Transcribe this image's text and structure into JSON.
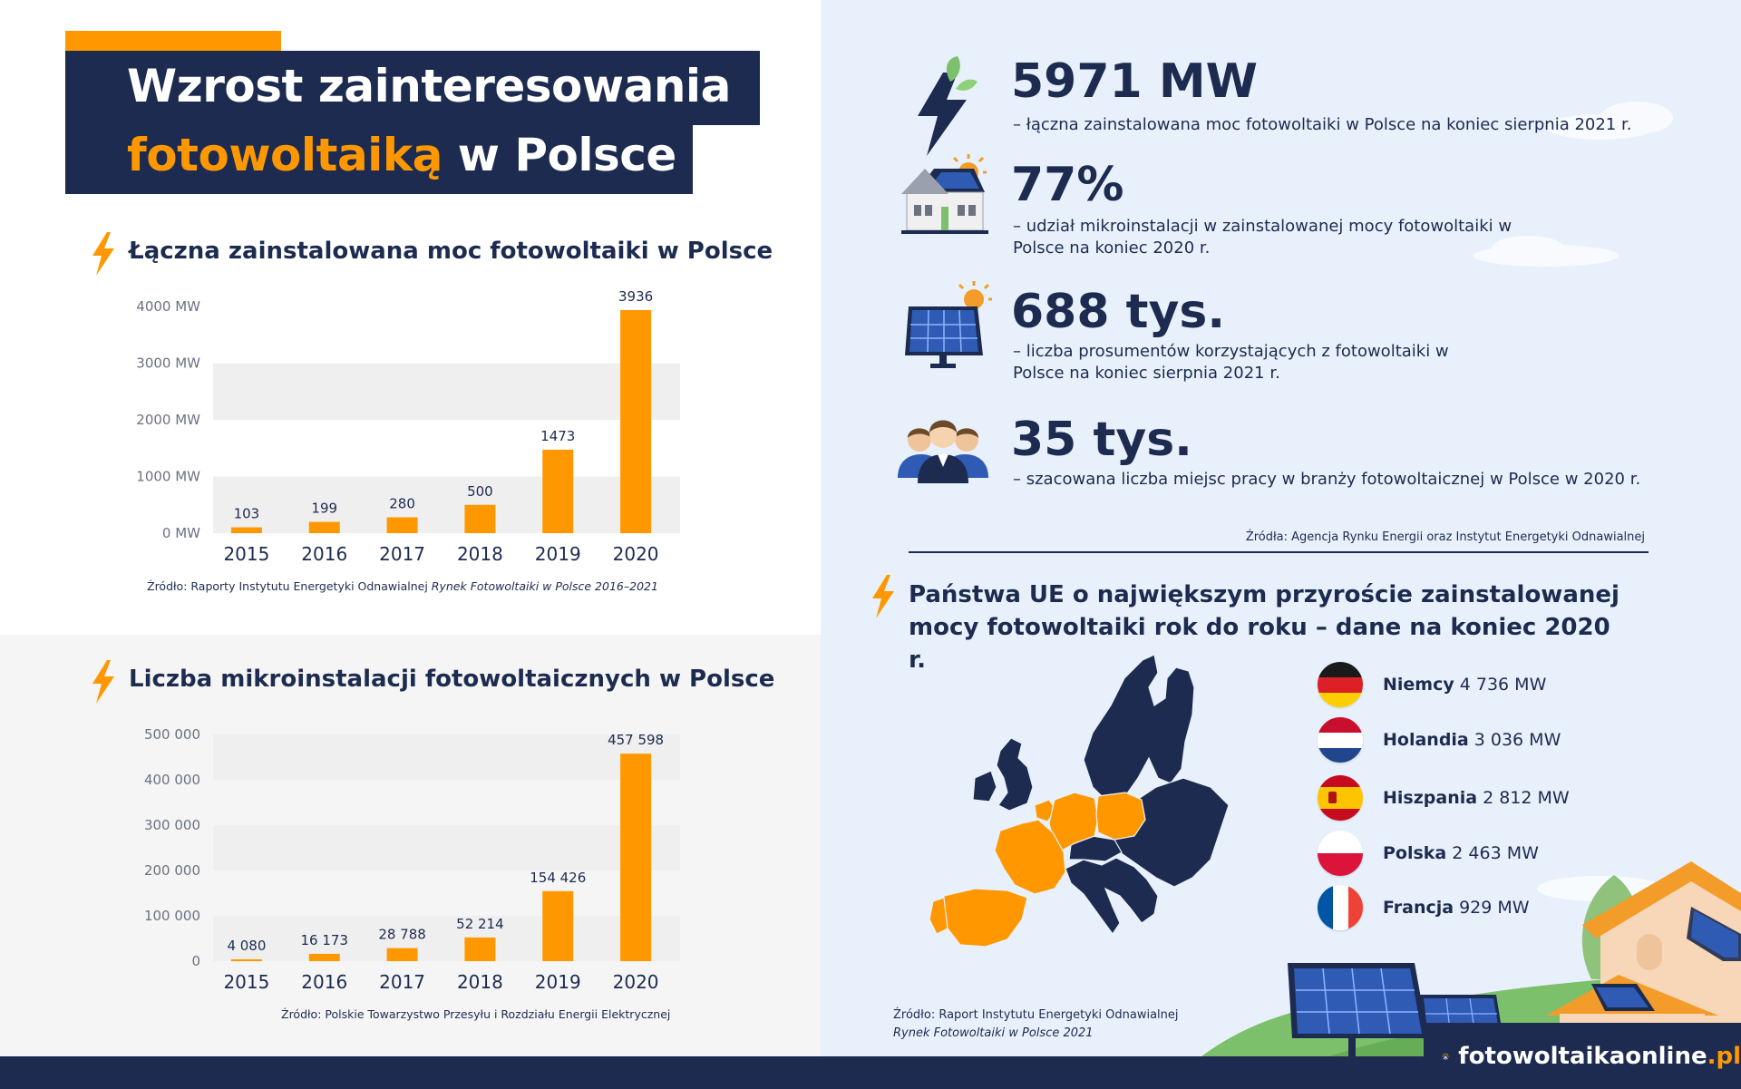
{
  "title": {
    "line1": "Wzrost zainteresowania",
    "line2_highlight": "fotowoltaiką",
    "line2_rest": " w Polsce"
  },
  "colors": {
    "navy": "#1c2b4f",
    "orange": "#ff9800",
    "light_blue": "#e8f1fb"
  },
  "chart_data": [
    {
      "type": "bar",
      "title": "Łączna zainstalowana moc fotowoltaiki w Polsce",
      "categories": [
        "2015",
        "2016",
        "2017",
        "2018",
        "2019",
        "2020"
      ],
      "values": [
        103,
        199,
        280,
        500,
        1473,
        3936
      ],
      "value_labels": [
        "103",
        "199",
        "280",
        "500",
        "1473",
        "3936"
      ],
      "y_ticks": [
        0,
        1000,
        2000,
        3000,
        4000
      ],
      "y_tick_labels": [
        "0 MW",
        "1000 MW",
        "2000 MW",
        "3000 MW",
        "4000 MW"
      ],
      "ylim": [
        0,
        4000
      ],
      "source": "Źródło: Raporty Instytutu Energetyki Odnawialnej",
      "source_italic": "Rynek Fotowoltaiki w Polsce 2016–2021"
    },
    {
      "type": "bar",
      "title": "Liczba mikroinstalacji fotowoltaicznych w Polsce",
      "categories": [
        "2015",
        "2016",
        "2017",
        "2018",
        "2019",
        "2020"
      ],
      "values": [
        4080,
        16173,
        28788,
        52214,
        154426,
        457598
      ],
      "value_labels": [
        "4 080",
        "16 173",
        "28 788",
        "52 214",
        "154 426",
        "457 598"
      ],
      "y_ticks": [
        0,
        100000,
        200000,
        300000,
        400000,
        500000
      ],
      "y_tick_labels": [
        "0",
        "100 000",
        "200 000",
        "300 000",
        "400 000",
        "500 000"
      ],
      "ylim": [
        0,
        500000
      ],
      "source": "Źródło: Polskie Towarzystwo Przesyłu i Rozdziału Energii Elektrycznej",
      "source_italic": ""
    }
  ],
  "stats": [
    {
      "icon": "lightning-leaf-icon",
      "value": "5971 MW",
      "desc": "– łączna zainstalowana moc fotowoltaiki w Polsce na koniec sierpnia 2021 r."
    },
    {
      "icon": "house-solar-icon",
      "value": "77%",
      "desc": "– udział mikroinstalacji w zainstalowanej mocy fotowoltaiki w Polsce na koniec 2020 r."
    },
    {
      "icon": "solar-panel-icon",
      "value": "688 tys.",
      "desc": "– liczba prosumentów korzystających z fotowoltaiki w Polsce na koniec sierpnia 2021 r."
    },
    {
      "icon": "workers-icon",
      "value": "35 tys.",
      "desc": "– szacowana liczba miejsc pracy w branży fotowoltaicznej w Polsce w 2020 r."
    }
  ],
  "stats_source": "Źródła: Agencja Rynku Energii oraz Instytut Energetyki Odnawialnej",
  "eu": {
    "title": "Państwa UE o największym przyroście zainstalowanej mocy fotowoltaiki rok do roku – dane na koniec 2020 r.",
    "countries": [
      {
        "name": "Niemcy",
        "value": "4 736 MW",
        "flag": "germany-flag-icon"
      },
      {
        "name": "Holandia",
        "value": "3 036 MW",
        "flag": "netherlands-flag-icon"
      },
      {
        "name": "Hiszpania",
        "value": "2 812 MW",
        "flag": "spain-flag-icon"
      },
      {
        "name": "Polska",
        "value": "2 463 MW",
        "flag": "poland-flag-icon"
      },
      {
        "name": "Francja",
        "value": "929 MW",
        "flag": "france-flag-icon"
      }
    ],
    "source_line1": "Źródło: Raport Instytutu Energetyki Odnawialnej",
    "source_line2": "Rynek Fotowoltaiki w Polsce 2021"
  },
  "logo": {
    "name": "fotowoltaikaonline",
    "tld": ".pl"
  }
}
